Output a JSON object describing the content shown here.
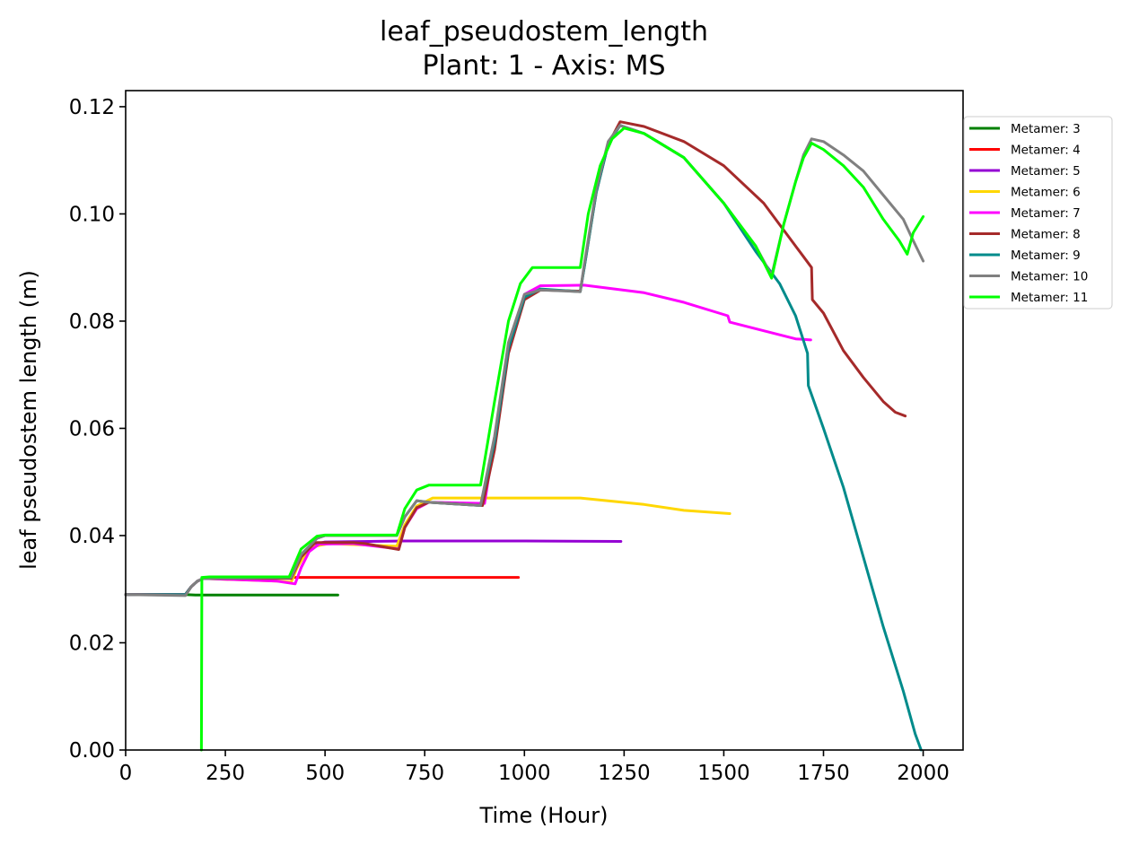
{
  "chart_data": {
    "type": "line",
    "title": "leaf_pseudostem_length",
    "subtitle": "Plant: 1 - Axis: MS",
    "xlabel": "Time (Hour)",
    "ylabel": "leaf pseudostem length (m)",
    "xlim": [
      0,
      2100
    ],
    "ylim": [
      0,
      0.123
    ],
    "xticks": [
      0,
      250,
      500,
      750,
      1000,
      1250,
      1500,
      1750,
      2000
    ],
    "xtick_labels": [
      "0",
      "250",
      "500",
      "750",
      "1000",
      "1250",
      "1500",
      "1750",
      "2000"
    ],
    "yticks": [
      0.0,
      0.02,
      0.04,
      0.06,
      0.08,
      0.1,
      0.12
    ],
    "ytick_labels": [
      "0.00",
      "0.02",
      "0.04",
      "0.06",
      "0.08",
      "0.10",
      "0.12"
    ],
    "grid": false,
    "legend_position": "outside right, upper",
    "series": [
      {
        "name": "Metamer: 3",
        "color": "#008000",
        "points": [
          [
            0,
            0.029
          ],
          [
            150,
            0.029
          ],
          [
            175,
            0.0289
          ],
          [
            200,
            0.0289
          ],
          [
            532,
            0.0289
          ]
        ]
      },
      {
        "name": "Metamer: 4",
        "color": "#ff0000",
        "points": [
          [
            0,
            0.029
          ],
          [
            150,
            0.029
          ],
          [
            165,
            0.0305
          ],
          [
            180,
            0.0315
          ],
          [
            195,
            0.032
          ],
          [
            220,
            0.0322
          ],
          [
            985,
            0.0322
          ]
        ]
      },
      {
        "name": "Metamer: 5",
        "color": "#9400d3",
        "points": [
          [
            0,
            0.029
          ],
          [
            150,
            0.029
          ],
          [
            165,
            0.0305
          ],
          [
            180,
            0.0315
          ],
          [
            195,
            0.032
          ],
          [
            415,
            0.0322
          ],
          [
            430,
            0.0345
          ],
          [
            450,
            0.037
          ],
          [
            470,
            0.0383
          ],
          [
            500,
            0.0388
          ],
          [
            700,
            0.039
          ],
          [
            1000,
            0.039
          ],
          [
            1242,
            0.0389
          ]
        ]
      },
      {
        "name": "Metamer: 6",
        "color": "#ffd700",
        "points": [
          [
            0,
            0.029
          ],
          [
            150,
            0.029
          ],
          [
            165,
            0.0305
          ],
          [
            180,
            0.0315
          ],
          [
            195,
            0.032
          ],
          [
            380,
            0.0315
          ],
          [
            415,
            0.0313
          ],
          [
            430,
            0.034
          ],
          [
            450,
            0.0365
          ],
          [
            475,
            0.038
          ],
          [
            510,
            0.0385
          ],
          [
            680,
            0.038
          ],
          [
            700,
            0.042
          ],
          [
            730,
            0.0455
          ],
          [
            770,
            0.047
          ],
          [
            1140,
            0.047
          ],
          [
            1300,
            0.0458
          ],
          [
            1400,
            0.0447
          ],
          [
            1515,
            0.0441
          ]
        ]
      },
      {
        "name": "Metamer: 7",
        "color": "#ff00ff",
        "points": [
          [
            0,
            0.029
          ],
          [
            150,
            0.029
          ],
          [
            165,
            0.0305
          ],
          [
            180,
            0.0315
          ],
          [
            195,
            0.032
          ],
          [
            380,
            0.0315
          ],
          [
            425,
            0.031
          ],
          [
            440,
            0.034
          ],
          [
            460,
            0.037
          ],
          [
            485,
            0.0384
          ],
          [
            570,
            0.0385
          ],
          [
            685,
            0.0375
          ],
          [
            700,
            0.0415
          ],
          [
            730,
            0.045
          ],
          [
            760,
            0.0462
          ],
          [
            900,
            0.046
          ],
          [
            925,
            0.058
          ],
          [
            960,
            0.075
          ],
          [
            1000,
            0.085
          ],
          [
            1040,
            0.0866
          ],
          [
            1150,
            0.0867
          ],
          [
            1300,
            0.0853
          ],
          [
            1400,
            0.0835
          ],
          [
            1510,
            0.081
          ],
          [
            1515,
            0.0798
          ],
          [
            1600,
            0.0782
          ],
          [
            1680,
            0.0767
          ],
          [
            1718,
            0.0765
          ]
        ]
      },
      {
        "name": "Metamer: 8",
        "color": "#a52a2a",
        "points": [
          [
            0,
            0.029
          ],
          [
            150,
            0.029
          ],
          [
            165,
            0.0305
          ],
          [
            180,
            0.0315
          ],
          [
            195,
            0.032
          ],
          [
            415,
            0.032
          ],
          [
            440,
            0.036
          ],
          [
            475,
            0.0387
          ],
          [
            570,
            0.0387
          ],
          [
            600,
            0.0385
          ],
          [
            685,
            0.0374
          ],
          [
            700,
            0.0415
          ],
          [
            730,
            0.0452
          ],
          [
            760,
            0.0462
          ],
          [
            895,
            0.0456
          ],
          [
            925,
            0.056
          ],
          [
            960,
            0.074
          ],
          [
            1000,
            0.084
          ],
          [
            1040,
            0.0858
          ],
          [
            1140,
            0.0856
          ],
          [
            1150,
            0.09
          ],
          [
            1180,
            0.104
          ],
          [
            1210,
            0.113
          ],
          [
            1240,
            0.1172
          ],
          [
            1300,
            0.1163
          ],
          [
            1400,
            0.1135
          ],
          [
            1500,
            0.109
          ],
          [
            1600,
            0.102
          ],
          [
            1650,
            0.097
          ],
          [
            1700,
            0.092
          ],
          [
            1720,
            0.09
          ],
          [
            1722,
            0.084
          ],
          [
            1750,
            0.0815
          ],
          [
            1800,
            0.0745
          ],
          [
            1850,
            0.0695
          ],
          [
            1900,
            0.065
          ],
          [
            1930,
            0.063
          ],
          [
            1955,
            0.0623
          ]
        ]
      },
      {
        "name": "Metamer: 9",
        "color": "#008b8b",
        "points": [
          [
            0,
            0.029
          ],
          [
            150,
            0.029
          ],
          [
            165,
            0.0305
          ],
          [
            180,
            0.0315
          ],
          [
            195,
            0.032
          ],
          [
            415,
            0.0322
          ],
          [
            440,
            0.0365
          ],
          [
            480,
            0.0395
          ],
          [
            500,
            0.04
          ],
          [
            680,
            0.04
          ],
          [
            700,
            0.0435
          ],
          [
            730,
            0.0465
          ],
          [
            760,
            0.0462
          ],
          [
            890,
            0.0456
          ],
          [
            925,
            0.0575
          ],
          [
            960,
            0.075
          ],
          [
            1000,
            0.0845
          ],
          [
            1040,
            0.086
          ],
          [
            1140,
            0.0855
          ],
          [
            1150,
            0.09
          ],
          [
            1180,
            0.104
          ],
          [
            1210,
            0.113
          ],
          [
            1240,
            0.1165
          ],
          [
            1300,
            0.115
          ],
          [
            1400,
            0.1105
          ],
          [
            1500,
            0.102
          ],
          [
            1580,
            0.093
          ],
          [
            1640,
            0.087
          ],
          [
            1680,
            0.081
          ],
          [
            1710,
            0.074
          ],
          [
            1712,
            0.068
          ],
          [
            1750,
            0.06
          ],
          [
            1800,
            0.049
          ],
          [
            1850,
            0.036
          ],
          [
            1900,
            0.023
          ],
          [
            1950,
            0.011
          ],
          [
            1980,
            0.003
          ],
          [
            1995,
            0.0
          ]
        ]
      },
      {
        "name": "Metamer: 10",
        "color": "#808080",
        "points": [
          [
            0,
            0.029
          ],
          [
            150,
            0.0288
          ],
          [
            165,
            0.0305
          ],
          [
            180,
            0.0315
          ],
          [
            195,
            0.032
          ],
          [
            415,
            0.0322
          ],
          [
            440,
            0.0365
          ],
          [
            480,
            0.0395
          ],
          [
            500,
            0.04
          ],
          [
            680,
            0.04
          ],
          [
            700,
            0.0435
          ],
          [
            730,
            0.0465
          ],
          [
            760,
            0.0462
          ],
          [
            890,
            0.0456
          ],
          [
            925,
            0.0585
          ],
          [
            960,
            0.076
          ],
          [
            1000,
            0.085
          ],
          [
            1040,
            0.0858
          ],
          [
            1140,
            0.0855
          ],
          [
            1150,
            0.0905
          ],
          [
            1180,
            0.1045
          ],
          [
            1210,
            0.1135
          ],
          [
            1240,
            0.1165
          ],
          [
            1300,
            0.115
          ],
          [
            1400,
            0.1105
          ],
          [
            1500,
            0.102
          ],
          [
            1580,
            0.094
          ],
          [
            1620,
            0.0885
          ],
          [
            1650,
            0.098
          ],
          [
            1680,
            0.106
          ],
          [
            1700,
            0.111
          ],
          [
            1720,
            0.114
          ],
          [
            1750,
            0.1135
          ],
          [
            1800,
            0.111
          ],
          [
            1850,
            0.108
          ],
          [
            1900,
            0.1035
          ],
          [
            1950,
            0.099
          ],
          [
            1975,
            0.095
          ],
          [
            2000,
            0.0912
          ]
        ]
      },
      {
        "name": "Metamer: 11",
        "color": "#00ff00",
        "points": [
          [
            190,
            0.0
          ],
          [
            191,
            0.0322
          ],
          [
            210,
            0.0323
          ],
          [
            410,
            0.0323
          ],
          [
            440,
            0.0375
          ],
          [
            480,
            0.0399
          ],
          [
            500,
            0.0401
          ],
          [
            680,
            0.0401
          ],
          [
            700,
            0.045
          ],
          [
            730,
            0.0485
          ],
          [
            760,
            0.0494
          ],
          [
            890,
            0.0494
          ],
          [
            925,
            0.065
          ],
          [
            960,
            0.08
          ],
          [
            990,
            0.087
          ],
          [
            1020,
            0.09
          ],
          [
            1140,
            0.09
          ],
          [
            1145,
            0.0925
          ],
          [
            1160,
            0.1
          ],
          [
            1190,
            0.109
          ],
          [
            1220,
            0.114
          ],
          [
            1250,
            0.116
          ],
          [
            1300,
            0.115
          ],
          [
            1400,
            0.1105
          ],
          [
            1500,
            0.102
          ],
          [
            1580,
            0.094
          ],
          [
            1620,
            0.088
          ],
          [
            1650,
            0.098
          ],
          [
            1680,
            0.106
          ],
          [
            1700,
            0.1105
          ],
          [
            1720,
            0.1132
          ],
          [
            1750,
            0.112
          ],
          [
            1800,
            0.109
          ],
          [
            1850,
            0.105
          ],
          [
            1900,
            0.099
          ],
          [
            1940,
            0.095
          ],
          [
            1960,
            0.0925
          ],
          [
            1975,
            0.0965
          ],
          [
            2000,
            0.0995
          ]
        ]
      }
    ]
  }
}
